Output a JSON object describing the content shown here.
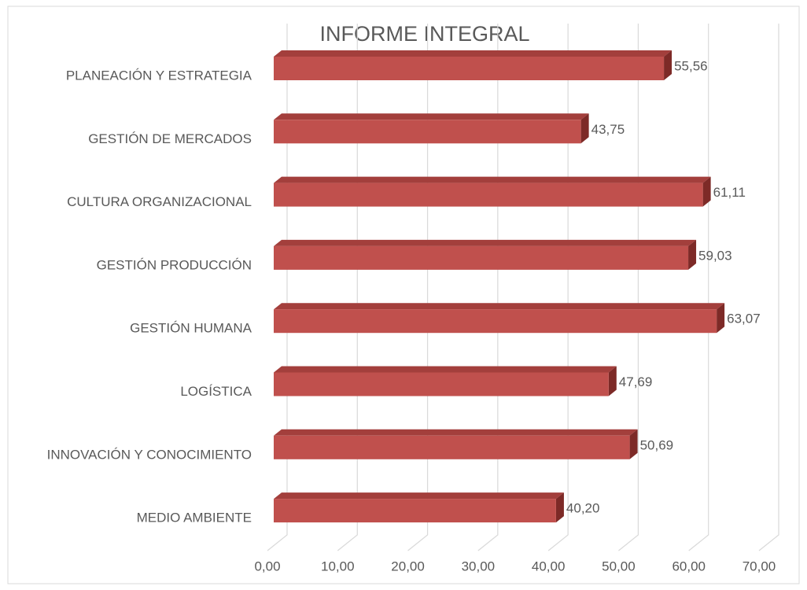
{
  "chart_data": {
    "type": "bar3d-horizontal",
    "title": "INFORME INTEGRAL",
    "categories": [
      "PLANEACIÓN Y ESTRATEGIA",
      "GESTIÓN DE MERCADOS",
      "CULTURA ORGANIZACIONAL",
      "GESTIÓN PRODUCCIÓN",
      "GESTIÓN HUMANA",
      "LOGÍSTICA",
      "INNOVACIÓN Y CONOCIMIENTO",
      "MEDIO AMBIENTE"
    ],
    "values": [
      55.56,
      43.75,
      61.11,
      59.03,
      63.07,
      47.69,
      50.69,
      40.2
    ],
    "value_labels": [
      "55,56",
      "43,75",
      "61,11",
      "59,03",
      "63,07",
      "47,69",
      "50,69",
      "40,20"
    ],
    "color": "#c0504d",
    "xlim": [
      0,
      70
    ],
    "xticks": [
      {
        "value": 0,
        "label": "0,00"
      },
      {
        "value": 10,
        "label": "10,00"
      },
      {
        "value": 20,
        "label": "20,00"
      },
      {
        "value": 30,
        "label": "30,00"
      },
      {
        "value": 40,
        "label": "40,00"
      },
      {
        "value": 50,
        "label": "50,00"
      },
      {
        "value": 60,
        "label": "60,00"
      },
      {
        "value": 70,
        "label": "70,00"
      }
    ],
    "grid": true
  }
}
